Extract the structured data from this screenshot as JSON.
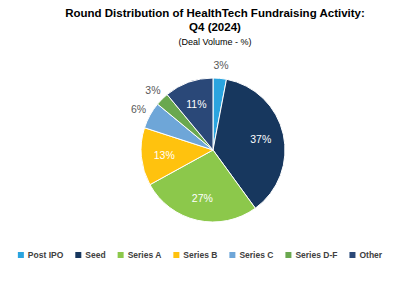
{
  "chart_data": {
    "type": "pie",
    "title": "Round Distribution of HealthTech Fundraising Activity: Q4 (2024)",
    "subtitle": "(Deal Volume - %)",
    "categories": [
      "Post IPO",
      "Seed",
      "Series A",
      "Series B",
      "Series C",
      "Series D-F",
      "Other"
    ],
    "values": [
      3,
      37,
      27,
      13,
      6,
      3,
      11
    ],
    "value_labels": [
      "3%",
      "37%",
      "27%",
      "13%",
      "6%",
      "3%",
      "11%"
    ],
    "colors": [
      "#2aa4df",
      "#17375e",
      "#8cc84b",
      "#ffc20e",
      "#6ea6d8",
      "#6aa84f",
      "#2a4878"
    ],
    "data_labels": true,
    "legend": "bottom"
  }
}
